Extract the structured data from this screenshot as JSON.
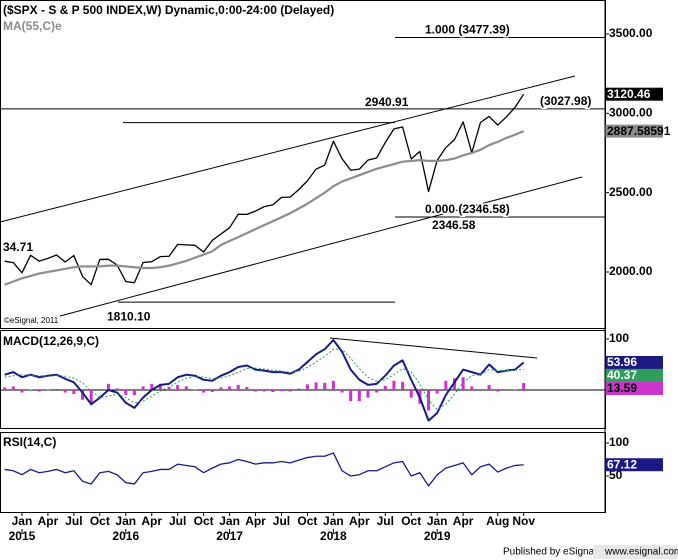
{
  "chart_data": [
    {
      "type": "line",
      "title": "($SPX - S & P 500 INDEX,W) Dynamic,0:00-24:00 (Delayed)",
      "watermark": "©eSignal, 2011",
      "note": "34.71",
      "x": [
        -2,
        -1,
        0,
        1,
        2,
        3,
        4,
        5,
        6,
        7,
        8,
        9,
        10,
        11,
        12,
        13,
        14,
        15,
        16,
        17,
        18,
        19,
        20,
        21,
        22,
        23,
        24,
        25,
        26,
        27,
        28,
        29,
        30,
        31,
        32,
        33,
        34,
        35,
        36,
        37,
        38,
        39,
        40,
        41,
        42,
        43,
        44,
        45,
        46,
        47,
        48,
        49,
        50,
        51,
        52,
        53,
        54,
        55,
        56,
        57,
        58
      ],
      "xlim": [
        -2.54,
        67.4
      ],
      "ylim": [
        1647,
        3714
      ],
      "yticks": [
        {
          "value": 2000,
          "label": "2000.00"
        },
        {
          "value": 2500,
          "label": "2500.00"
        },
        {
          "value": 3000,
          "label": "3000.00"
        },
        {
          "value": 3500,
          "label": "3500.00"
        }
      ],
      "series": [
        {
          "color": "#000000",
          "label_color": "#ffffff",
          "width": 1.3,
          "values": [
            2068,
            2059,
            1995,
            2105,
            2068,
            2086,
            2107,
            2063,
            2104,
            1972,
            1920,
            2079,
            2080,
            2044,
            1940,
            1932,
            2060,
            2065,
            2097,
            2099,
            2174,
            2171,
            2168,
            2126,
            2199,
            2239,
            2279,
            2364,
            2363,
            2384,
            2412,
            2423,
            2470,
            2472,
            2519,
            2575,
            2648,
            2674,
            2824,
            2714,
            2641,
            2648,
            2705,
            2718,
            2816,
            2902,
            2914,
            2712,
            2760,
            2507,
            2704,
            2784,
            2834,
            2946,
            2752,
            2942,
            2980,
            2926,
            2977,
            3038,
            3120.46
          ]
        },
        {
          "name": "MA(55,C)e",
          "color": "#8c8c8c",
          "label_color": "#000000",
          "width": 2.2,
          "values": [
            1920,
            1940,
            1960,
            1975,
            1990,
            2000,
            2010,
            2020,
            2030,
            2035,
            2035,
            2035,
            2040,
            2040,
            2035,
            2030,
            2025,
            2025,
            2030,
            2040,
            2055,
            2070,
            2090,
            2110,
            2130,
            2170,
            2195,
            2220,
            2245,
            2270,
            2295,
            2320,
            2345,
            2370,
            2400,
            2430,
            2465,
            2500,
            2540,
            2570,
            2590,
            2610,
            2630,
            2650,
            2665,
            2680,
            2695,
            2700,
            2705,
            2700,
            2700,
            2705,
            2715,
            2735,
            2750,
            2770,
            2800,
            2820,
            2845,
            2865,
            2887.58591
          ]
        }
      ],
      "levels": [
        {
          "value": 3477.39,
          "label": "1.000 (3477.39)"
        },
        {
          "value": 3027.98,
          "label": "(3027.98)"
        },
        2940.91,
        {
          "value": 2346.58,
          "label": "0.000 (2346.58)"
        },
        2346.58,
        {
          "value": 1810.1,
          "label": "1810.10"
        }
      ]
    },
    {
      "type": "line",
      "title": "MACD(12,26,9,C)",
      "x": [
        -2,
        -1,
        0,
        1,
        2,
        3,
        4,
        5,
        6,
        7,
        8,
        9,
        10,
        11,
        12,
        13,
        14,
        15,
        16,
        17,
        18,
        19,
        20,
        21,
        22,
        23,
        24,
        25,
        26,
        27,
        28,
        29,
        30,
        31,
        32,
        33,
        34,
        35,
        36,
        37,
        38,
        39,
        40,
        41,
        42,
        43,
        44,
        45,
        46,
        47,
        48,
        49,
        50,
        51,
        52,
        53,
        54,
        55,
        56,
        57,
        58
      ],
      "xlim": [
        -2.54,
        67.4
      ],
      "ylim": [
        -74.5,
        117.6
      ],
      "yticks": [
        0,
        100
      ],
      "series": [
        {
          "type": "bar",
          "color": "#cc33cc",
          "label_color": "#000000",
          "values": [
            5,
            7,
            -5,
            1,
            -3,
            1,
            2,
            -5,
            -8,
            -19,
            -26,
            0,
            12,
            3,
            -10,
            -10,
            7,
            12,
            12,
            6,
            10,
            7,
            1,
            -5,
            -4,
            5,
            7,
            10,
            6,
            -3,
            -3,
            -4,
            -2,
            -3,
            3,
            11,
            15,
            14,
            18,
            -5,
            -22,
            -22,
            -15,
            -5,
            8,
            18,
            16,
            -15,
            -27,
            -40,
            -7,
            18,
            23,
            25,
            7,
            0,
            10,
            -3,
            0,
            1,
            13.59
          ]
        },
        {
          "color": "#1a1a80",
          "label_color": "#ffffff",
          "width": 2,
          "values": [
            30,
            35,
            25,
            30,
            25,
            28,
            30,
            22,
            15,
            -5,
            -28,
            -15,
            0,
            -5,
            -25,
            -35,
            -15,
            0,
            10,
            12,
            25,
            30,
            28,
            20,
            18,
            28,
            35,
            45,
            48,
            40,
            38,
            35,
            35,
            32,
            40,
            55,
            70,
            80,
            98,
            75,
            40,
            20,
            10,
            12,
            28,
            48,
            58,
            20,
            -15,
            -60,
            -45,
            -10,
            15,
            40,
            35,
            30,
            50,
            35,
            38,
            40,
            53.96
          ]
        },
        {
          "color": "#2e9e5b",
          "label_color": "#ffffff",
          "width": 1,
          "dash": true,
          "values": [
            25,
            28,
            30,
            29,
            28,
            27,
            28,
            27,
            23,
            14,
            -2,
            -15,
            -12,
            -8,
            -15,
            -25,
            -22,
            -12,
            -2,
            6,
            15,
            23,
            27,
            25,
            22,
            23,
            28,
            35,
            42,
            43,
            41,
            39,
            37,
            35,
            37,
            44,
            55,
            66,
            80,
            80,
            62,
            42,
            25,
            17,
            20,
            30,
            42,
            35,
            12,
            -20,
            -38,
            -28,
            -8,
            15,
            28,
            30,
            40,
            38,
            38,
            39,
            40.37
          ]
        }
      ]
    },
    {
      "type": "line",
      "title": "RSI(14,C)",
      "x": [
        -2,
        -1,
        0,
        1,
        2,
        3,
        4,
        5,
        6,
        7,
        8,
        9,
        10,
        11,
        12,
        13,
        14,
        15,
        16,
        17,
        18,
        19,
        20,
        21,
        22,
        23,
        24,
        25,
        26,
        27,
        28,
        29,
        30,
        31,
        32,
        33,
        34,
        35,
        36,
        37,
        38,
        39,
        40,
        41,
        42,
        43,
        44,
        45,
        46,
        47,
        48,
        49,
        50,
        51,
        52,
        53,
        54,
        55,
        56,
        57,
        58
      ],
      "xlim": [
        -2.54,
        67.4
      ],
      "ylim": [
        -4.5,
        116.7
      ],
      "yticks": [
        50,
        100
      ],
      "xticks": [
        {
          "value": 0,
          "label": "Jan"
        },
        {
          "value": 3,
          "label": "Apr"
        },
        {
          "value": 6,
          "label": "Jul"
        },
        {
          "value": 9,
          "label": "Oct"
        },
        {
          "value": 12,
          "label": "Jan"
        },
        {
          "value": 15,
          "label": "Apr"
        },
        {
          "value": 18,
          "label": "Jul"
        },
        {
          "value": 21,
          "label": "Oct"
        },
        {
          "value": 24,
          "label": "Jan"
        },
        {
          "value": 27,
          "label": "Apr"
        },
        {
          "value": 30,
          "label": "Jul"
        },
        {
          "value": 33,
          "label": "Oct"
        },
        {
          "value": 36,
          "label": "Jan"
        },
        {
          "value": 39,
          "label": "Apr"
        },
        {
          "value": 42,
          "label": "Jul"
        },
        {
          "value": 45,
          "label": "Oct"
        },
        {
          "value": 48,
          "label": "Jan"
        },
        {
          "value": 51,
          "label": "Apr"
        },
        {
          "value": 55,
          "label": "Aug"
        },
        {
          "value": 58,
          "label": "Nov"
        }
      ],
      "year_ticks": [
        {
          "value": 0,
          "label": "2015"
        },
        {
          "value": 12,
          "label": "2016"
        },
        {
          "value": 24,
          "label": "2017"
        },
        {
          "value": 36,
          "label": "2018"
        },
        {
          "value": 48,
          "label": "2019"
        }
      ],
      "series": [
        {
          "color": "#1a1a80",
          "label_color": "#ffffff",
          "width": 1.3,
          "values": [
            60,
            58,
            52,
            60,
            55,
            57,
            60,
            55,
            58,
            42,
            38,
            55,
            57,
            52,
            40,
            38,
            55,
            57,
            60,
            60,
            68,
            66,
            64,
            55,
            62,
            68,
            70,
            75,
            72,
            68,
            70,
            70,
            72,
            70,
            74,
            78,
            80,
            80,
            85,
            58,
            50,
            52,
            58,
            58,
            64,
            70,
            72,
            50,
            55,
            35,
            52,
            62,
            66,
            70,
            52,
            64,
            68,
            56,
            62,
            66,
            67.12
          ]
        }
      ]
    }
  ],
  "footer": {
    "publisher": "Published by eSignal",
    "site": "www.esignal.com"
  }
}
